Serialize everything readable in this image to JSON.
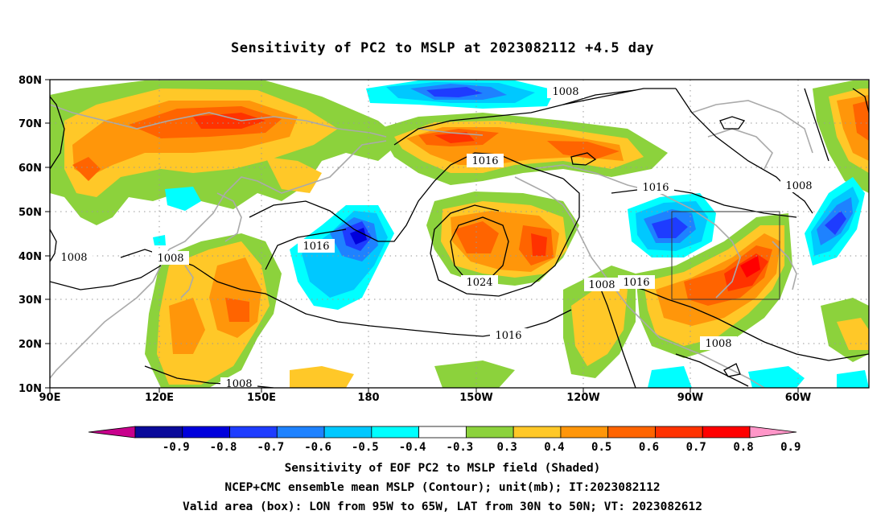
{
  "title": "Sensitivity of PC2 to MSLP at 2023082112 +4.5 day",
  "lat_labels": [
    "80N",
    "70N",
    "60N",
    "50N",
    "40N",
    "30N",
    "20N",
    "10N"
  ],
  "lon_labels": [
    "90E",
    "120E",
    "150E",
    "180",
    "150W",
    "120W",
    "90W",
    "60W"
  ],
  "contour_labels": [
    "1008",
    "1016",
    "1008",
    "1016",
    "1008",
    "1008",
    "1016",
    "1024",
    "1016",
    "1008",
    "1016",
    "1008",
    "1008"
  ],
  "colorbar": {
    "colors": [
      "#c8008c",
      "#0a0a9a",
      "#0000dc",
      "#1e3cff",
      "#1e82ff",
      "#00c8ff",
      "#00ffff",
      "#ffffff",
      "#8cd23c",
      "#ffc828",
      "#ff960a",
      "#ff6400",
      "#ff3200",
      "#ff0000",
      "#ff96c8"
    ],
    "tick_labels": [
      "-0.9",
      "-0.8",
      "-0.7",
      "-0.6",
      "-0.5",
      "-0.4",
      "-0.3",
      "0.3",
      "0.4",
      "0.5",
      "0.6",
      "0.7",
      "0.8",
      "0.9"
    ]
  },
  "captions": {
    "line1": "Sensitivity of EOF PC2 to MSLP field (Shaded)",
    "line2": "NCEP+CMC ensemble mean MSLP (Contour); unit(mb); IT:2023082112",
    "line3": "Valid area (box): LON from 95W to 65W, LAT from 30N to 50N; VT: 2023082612"
  }
}
